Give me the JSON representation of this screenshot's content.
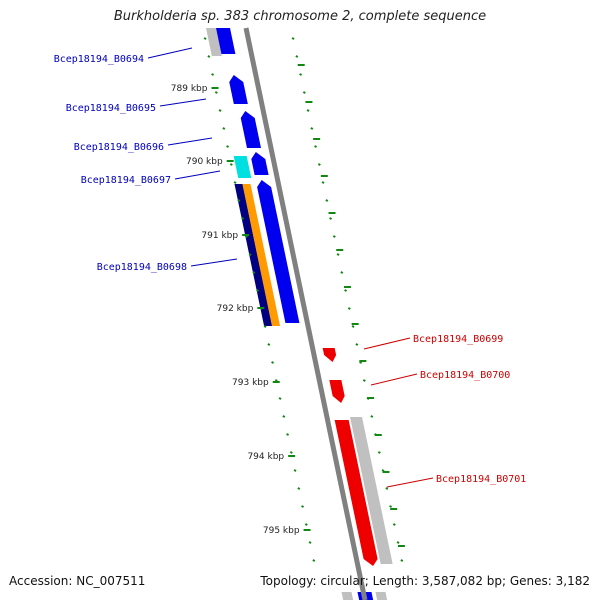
{
  "title": "Burkholderia sp. 383 chromosome 2, complete sequence",
  "accession": "Accession: NC_007511",
  "summary": "Topology: circular; Length: 3,587,082 bp; Genes: 3,182",
  "colors": {
    "forward_gene": "#0000ee",
    "forward_dark": "#000080",
    "reverse_gene": "#ee0000",
    "cyan_gene": "#00e0e0",
    "orange_cds": "#ff9a00",
    "gray_cds": "#c0c0c0",
    "backbone": "#808080",
    "tick": "#118811",
    "label_blue": "#0000bb",
    "label_red": "#cc0000"
  },
  "ticks": [
    {
      "label": "789 kbp"
    },
    {
      "label": "790 kbp"
    },
    {
      "label": "791 kbp"
    },
    {
      "label": "792 kbp"
    },
    {
      "label": "793 kbp"
    },
    {
      "label": "794 kbp"
    },
    {
      "label": "795 kbp"
    }
  ],
  "genes": [
    {
      "label": "Bcep18194_B0694",
      "strand": "forward"
    },
    {
      "label": "Bcep18194_B0695",
      "strand": "forward"
    },
    {
      "label": "Bcep18194_B0696",
      "strand": "forward"
    },
    {
      "label": "Bcep18194_B0697",
      "strand": "forward"
    },
    {
      "label": "Bcep18194_B0698",
      "strand": "forward"
    },
    {
      "label": "Bcep18194_B0699",
      "strand": "reverse"
    },
    {
      "label": "Bcep18194_B0700",
      "strand": "reverse"
    },
    {
      "label": "Bcep18194_B0701",
      "strand": "reverse"
    }
  ]
}
